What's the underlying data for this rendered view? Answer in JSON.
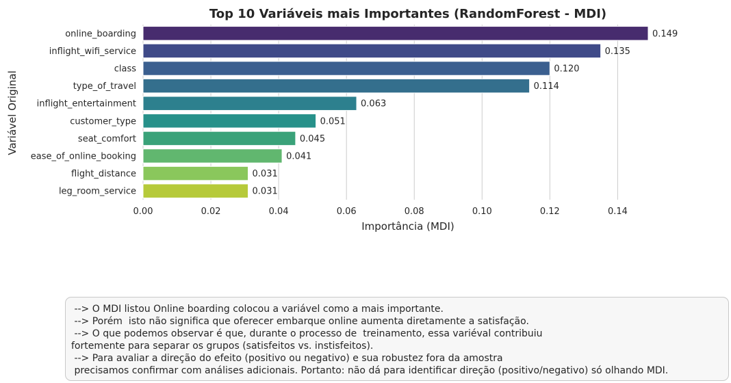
{
  "chart_data": {
    "type": "bar",
    "orientation": "horizontal",
    "title": "Top 10 Variáveis mais Importantes (RandomForest - MDI)",
    "xlabel": "Importância (MDI)",
    "ylabel": "Variável Original",
    "categories": [
      "online_boarding",
      "inflight_wifi_service",
      "class",
      "type_of_travel",
      "inflight_entertainment",
      "customer_type",
      "seat_comfort",
      "ease_of_online_booking",
      "flight_distance",
      "leg_room_service"
    ],
    "values": [
      0.149,
      0.135,
      0.12,
      0.114,
      0.063,
      0.051,
      0.045,
      0.041,
      0.031,
      0.031
    ],
    "value_labels": [
      "0.149",
      "0.135",
      "0.120",
      "0.114",
      "0.063",
      "0.051",
      "0.045",
      "0.041",
      "0.031",
      "0.031"
    ],
    "colors": [
      "#472c6e",
      "#3f4a88",
      "#3b5f8f",
      "#346f8d",
      "#2d808e",
      "#27918a",
      "#3aa279",
      "#61b76f",
      "#8ac75c",
      "#b6ca3a"
    ],
    "xlim": [
      0,
      0.149
    ],
    "xticks": [
      0.0,
      0.02,
      0.04,
      0.06,
      0.08,
      0.1,
      0.12,
      0.14
    ],
    "xtick_labels": [
      "0.00",
      "0.02",
      "0.04",
      "0.06",
      "0.08",
      "0.10",
      "0.12",
      "0.14"
    ],
    "grid": "vertical",
    "legend": "none"
  },
  "note": {
    "lines": [
      " --> O MDI listou Online boarding colocou a variável como a mais importante.",
      " --> Porém  isto não significa que oferecer embarque online aumenta diretamente a satisfação.",
      " --> O que podemos observar é que, durante o processo de  treinamento, essa variéval contribuiu",
      "fortemente para separar os grupos (satisfeitos vs. instisfeitos).",
      " --> Para avaliar a direção do efeito (positivo ou negativo) e sua robustez fora da amostra",
      " precisamos confirmar com análises adicionais. Portanto: não dá para identificar direção (positivo/negativo) só olhando MDI."
    ]
  }
}
